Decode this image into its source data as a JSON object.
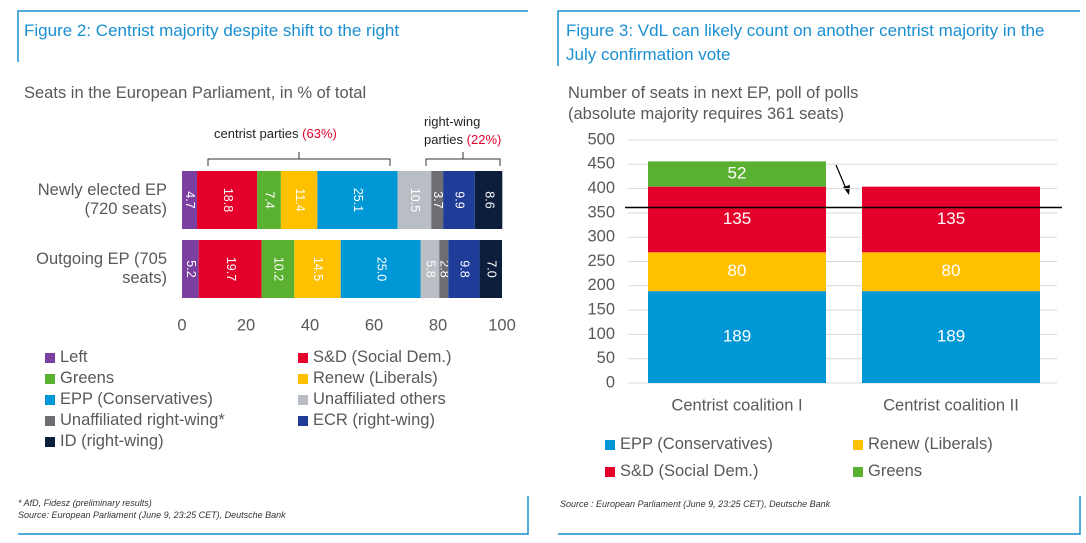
{
  "chart_data": [
    {
      "type": "hbar_stacked",
      "title": "Figure 2: Centrist majority despite shift to the right",
      "subtitle": "Seats in the European Parliament, in % of total",
      "categories": [
        "Newly elected EP (720 seats)",
        "Outgoing EP (705 seats)"
      ],
      "series": [
        {
          "name": "Left",
          "color": "#7b3fa0",
          "values": [
            4.7,
            5.2
          ],
          "value_labels": [
            "4.7",
            "5.2"
          ]
        },
        {
          "name": "S&D (Social Dem.)",
          "color": "#e4002b",
          "values": [
            18.8,
            19.7
          ],
          "value_labels": [
            "18.8",
            "19.7"
          ]
        },
        {
          "name": "Greens",
          "color": "#5ab031",
          "values": [
            7.4,
            10.2
          ],
          "value_labels": [
            "7.4",
            "10.2"
          ]
        },
        {
          "name": "Renew (Liberals)",
          "color": "#ffc000",
          "values": [
            11.4,
            14.5
          ],
          "value_labels": [
            "11.4",
            "14.5"
          ]
        },
        {
          "name": "EPP (Conservatives)",
          "color": "#0097d6",
          "values": [
            25.1,
            25.0
          ],
          "value_labels": [
            "25.1",
            "25.0"
          ]
        },
        {
          "name": "Unaffiliated others",
          "color": "#b8bec4",
          "values": [
            10.5,
            5.8
          ],
          "value_labels": [
            "10.5",
            "5.8"
          ]
        },
        {
          "name": "Unaffiliated right-wing*",
          "color": "#6d6e71",
          "values": [
            3.7,
            2.8
          ],
          "value_labels": [
            "3.7",
            "2.8"
          ]
        },
        {
          "name": "ECR (right-wing)",
          "color": "#1f3c99",
          "values": [
            9.9,
            9.8
          ],
          "value_labels": [
            "9.9",
            "9.8"
          ]
        },
        {
          "name": "ID (right-wing)",
          "color": "#0c1e3c",
          "values": [
            8.6,
            7.0
          ],
          "value_labels": [
            "8.6",
            "7.0"
          ]
        }
      ],
      "xlim": [
        0,
        100
      ],
      "xticks": [
        0,
        20,
        40,
        60,
        80,
        100
      ],
      "annotations": [
        {
          "text": "centrist parties",
          "share": "(63%)"
        },
        {
          "text": "right-wing parties",
          "share": "(22%)"
        }
      ],
      "footnotes": [
        "* AfD, Fidesz (preliminary results)",
        "Source: European Parliament (June 9, 23:25 CET), Deutsche Bank"
      ]
    },
    {
      "type": "bar_stacked",
      "title": "Figure 3: VdL can likely count on another centrist majority in the July confirmation vote",
      "subtitle": "Number of seats in next EP, poll of polls (absolute majority requires 361 seats)",
      "categories": [
        "Centrist coalition I",
        "Centrist coalition II"
      ],
      "series": [
        {
          "name": "EPP (Conservatives)",
          "color": "#0097d6",
          "values": [
            189,
            189
          ]
        },
        {
          "name": "Renew (Liberals)",
          "color": "#ffc000",
          "values": [
            80,
            80
          ]
        },
        {
          "name": "S&D (Social Dem.)",
          "color": "#e4002b",
          "values": [
            135,
            135
          ]
        },
        {
          "name": "Greens",
          "color": "#5ab031",
          "values": [
            52,
            null
          ]
        }
      ],
      "ylim": [
        0,
        500
      ],
      "yticks": [
        0,
        50,
        100,
        150,
        200,
        250,
        300,
        350,
        400,
        450,
        500
      ],
      "grid": true,
      "reference_line": 361,
      "footnotes": [
        "Source : European Parliament (June 9, 23:25 CET), Deutsche Bank"
      ]
    }
  ]
}
